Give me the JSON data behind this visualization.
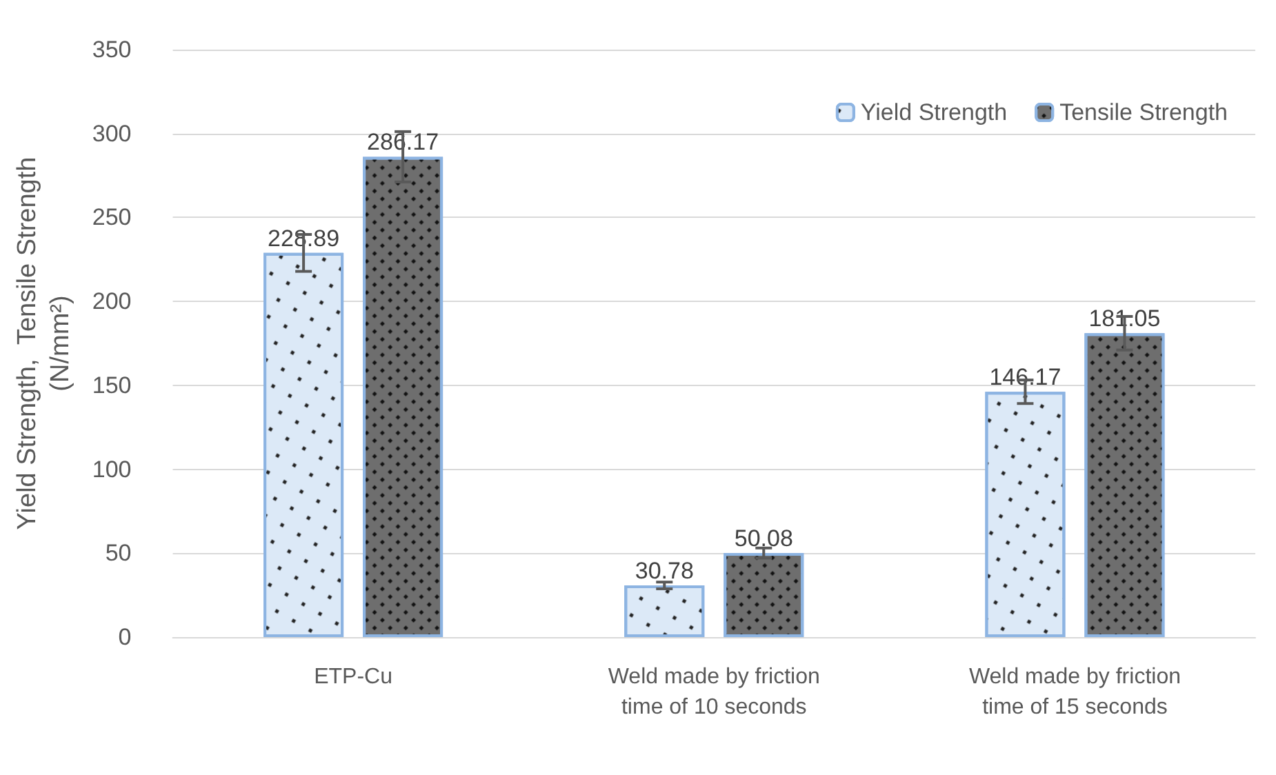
{
  "chart_data": {
    "type": "bar",
    "ylabel": "Yield Strength,  Tensile Strength\n(N/mm²)",
    "categories": [
      "ETP-Cu",
      "Weld made by friction\ntime of 10 seconds",
      "Weld made by friction\ntime of 15 seconds"
    ],
    "series": [
      {
        "name": "Yield Strength",
        "color": "#dce9f7",
        "values": [
          228.89,
          30.78,
          146.17
        ],
        "errors": [
          11,
          2,
          7
        ]
      },
      {
        "name": "Tensile Strength",
        "color": "#6e6e6e",
        "values": [
          286.17,
          50.08,
          181.05
        ],
        "errors": [
          15,
          3,
          10
        ]
      }
    ],
    "ylim": [
      0,
      350
    ],
    "yticks": [
      0,
      50,
      100,
      150,
      200,
      250,
      300,
      350
    ],
    "grid": "y",
    "legend": "top right",
    "data_labels": true
  }
}
